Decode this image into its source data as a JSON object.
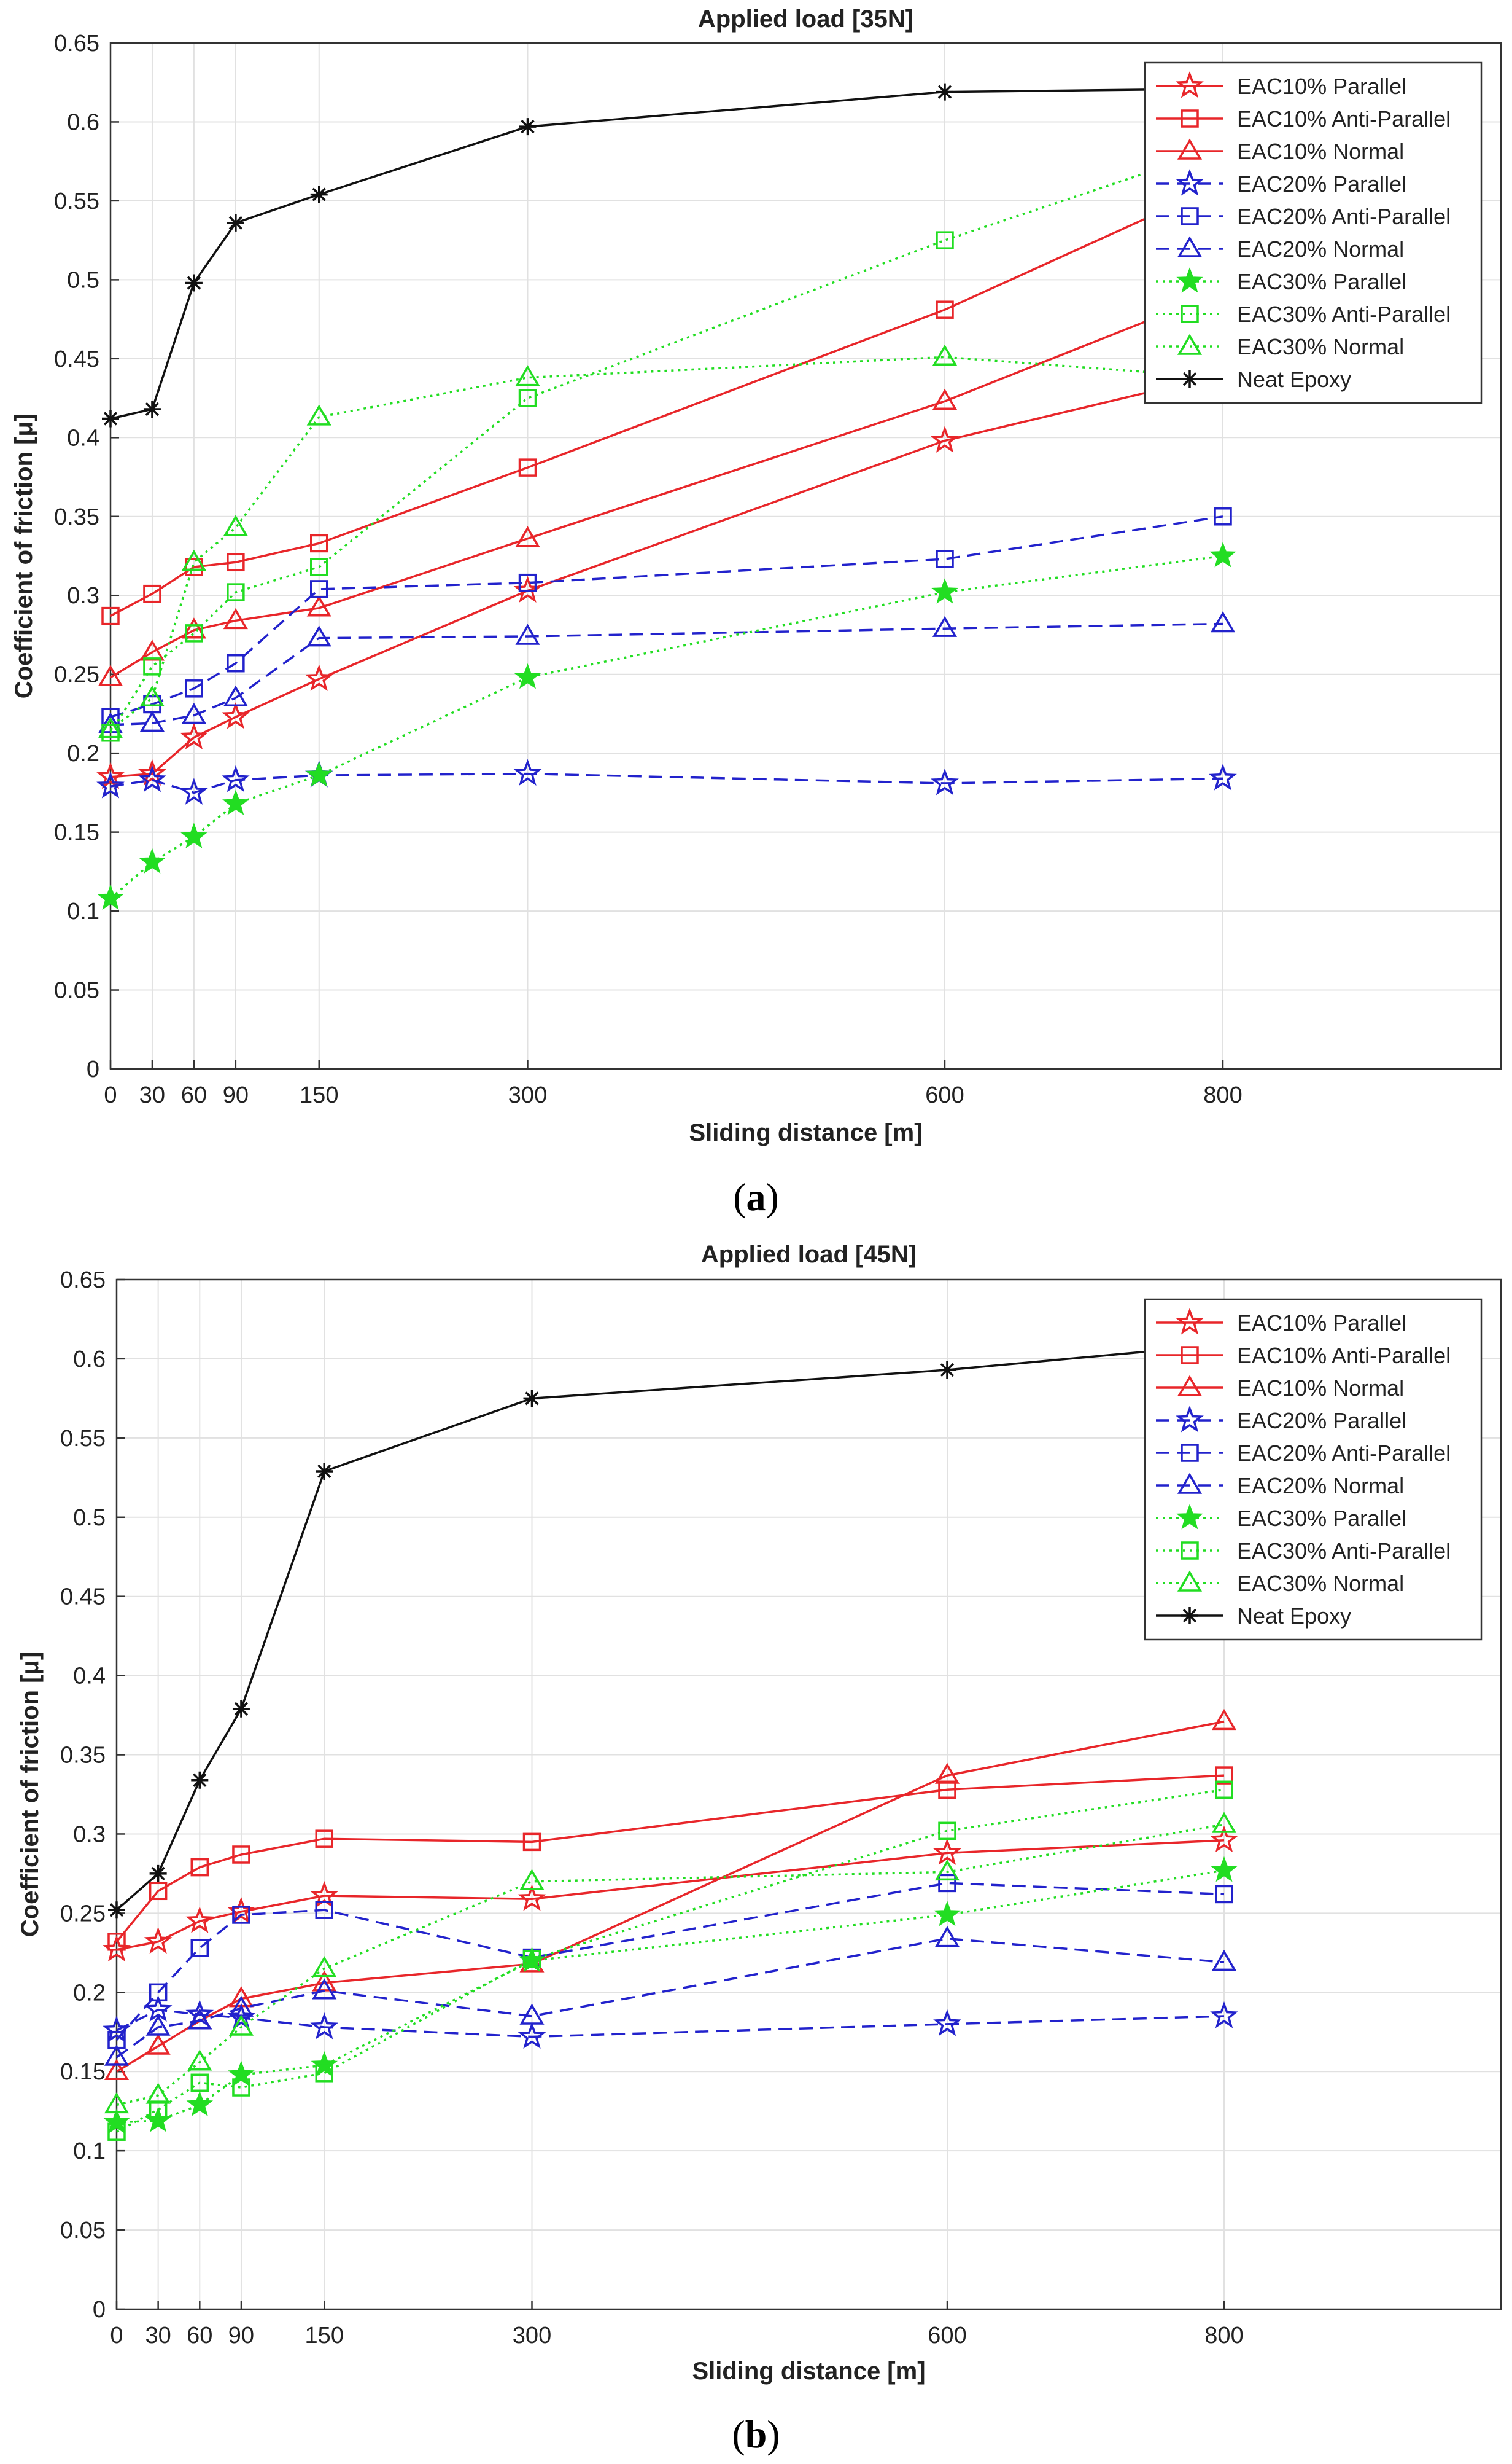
{
  "figure": {
    "captions": [
      "(a)",
      "(b)"
    ],
    "caption_letters": [
      "a",
      "b"
    ]
  },
  "series_styles": {
    "EAC10% Parallel": {
      "color": "#e8262a",
      "dash": "solid",
      "marker": "pentagram"
    },
    "EAC10% Anti-Parallel": {
      "color": "#e8262a",
      "dash": "solid",
      "marker": "square"
    },
    "EAC10% Normal": {
      "color": "#e8262a",
      "dash": "solid",
      "marker": "triangle"
    },
    "EAC20% Parallel": {
      "color": "#2222cc",
      "dash": "dashed",
      "marker": "pentagram"
    },
    "EAC20% Anti-Parallel": {
      "color": "#2222cc",
      "dash": "dashed",
      "marker": "square"
    },
    "EAC20% Normal": {
      "color": "#2222cc",
      "dash": "dashed",
      "marker": "triangle"
    },
    "EAC30% Parallel": {
      "color": "#22dd22",
      "dash": "dotted",
      "marker": "pentagram-filled"
    },
    "EAC30% Anti-Parallel": {
      "color": "#22dd22",
      "dash": "dotted",
      "marker": "square"
    },
    "EAC30% Normal": {
      "color": "#22dd22",
      "dash": "dotted",
      "marker": "triangle"
    },
    "Neat Epoxy": {
      "color": "#111111",
      "dash": "solid",
      "marker": "asterisk"
    }
  },
  "chart_data": [
    {
      "type": "line",
      "title": "Applied load [35N]",
      "xlabel": "Sliding distance [m]",
      "ylabel": "Coefficient of friction [μ]",
      "xlim": [
        0,
        1000
      ],
      "ylim": [
        0,
        0.65
      ],
      "xticks": [
        0,
        30,
        60,
        90,
        150,
        300,
        600,
        800
      ],
      "yticks": [
        0,
        0.05,
        0.1,
        0.15,
        0.2,
        0.25,
        0.3,
        0.35,
        0.4,
        0.45,
        0.5,
        0.55,
        0.6,
        0.65
      ],
      "ytick_labels": [
        "0",
        "0.05",
        "0.1",
        "0.15",
        "0.2",
        "0.25",
        "0.3",
        "0.35",
        "0.4",
        "0.45",
        "0.5",
        "0.55",
        "0.6",
        "0.65"
      ],
      "grid": true,
      "legend_position": "top-right",
      "x": [
        0,
        30,
        60,
        90,
        150,
        300,
        600,
        800
      ],
      "series": [
        {
          "name": "EAC10% Parallel",
          "values": [
            0.185,
            0.187,
            0.21,
            0.223,
            0.247,
            0.303,
            0.398,
            0.44
          ]
        },
        {
          "name": "EAC10% Anti-Parallel",
          "values": [
            0.287,
            0.301,
            0.318,
            0.321,
            0.333,
            0.381,
            0.481,
            0.561
          ]
        },
        {
          "name": "EAC10% Normal",
          "values": [
            0.248,
            0.264,
            0.278,
            0.284,
            0.292,
            0.336,
            0.423,
            0.493
          ]
        },
        {
          "name": "EAC20% Parallel",
          "values": [
            0.179,
            0.183,
            0.175,
            0.183,
            0.186,
            0.187,
            0.181,
            0.184
          ]
        },
        {
          "name": "EAC20% Anti-Parallel",
          "values": [
            0.223,
            0.231,
            0.241,
            0.257,
            0.304,
            0.308,
            0.323,
            0.35
          ]
        },
        {
          "name": "EAC20% Normal",
          "values": [
            0.218,
            0.219,
            0.224,
            0.235,
            0.273,
            0.274,
            0.279,
            0.282
          ]
        },
        {
          "name": "EAC30% Parallel",
          "values": [
            0.108,
            0.131,
            0.147,
            0.168,
            0.186,
            0.248,
            0.302,
            0.325
          ]
        },
        {
          "name": "EAC30% Anti-Parallel",
          "values": [
            0.213,
            0.255,
            0.276,
            0.302,
            0.318,
            0.425,
            0.525,
            0.584
          ]
        },
        {
          "name": "EAC30% Normal",
          "values": [
            0.215,
            0.235,
            0.321,
            0.343,
            0.413,
            0.438,
            0.451,
            0.438
          ]
        },
        {
          "name": "Neat Epoxy",
          "values": [
            0.412,
            0.418,
            0.498,
            0.536,
            0.554,
            0.597,
            0.619,
            0.621
          ]
        }
      ]
    },
    {
      "type": "line",
      "title": "Applied load [45N]",
      "xlabel": "Sliding distance [m]",
      "ylabel": "Coefficient of friction [μ]",
      "xlim": [
        0,
        1000
      ],
      "ylim": [
        0,
        0.65
      ],
      "xticks": [
        0,
        30,
        60,
        90,
        150,
        300,
        600,
        800
      ],
      "yticks": [
        0,
        0.05,
        0.1,
        0.15,
        0.2,
        0.25,
        0.3,
        0.35,
        0.4,
        0.45,
        0.5,
        0.55,
        0.6,
        0.65
      ],
      "ytick_labels": [
        "0",
        "0.05",
        "0.1",
        "0.15",
        "0.2",
        "0.25",
        "0.3",
        "0.35",
        "0.4",
        "0.45",
        "0.5",
        "0.55",
        "0.6",
        "0.65"
      ],
      "grid": true,
      "legend_position": "top-right",
      "x": [
        0,
        30,
        60,
        90,
        150,
        300,
        600,
        800
      ],
      "series": [
        {
          "name": "EAC10% Parallel",
          "values": [
            0.227,
            0.232,
            0.245,
            0.251,
            0.261,
            0.259,
            0.288,
            0.296
          ]
        },
        {
          "name": "EAC10% Anti-Parallel",
          "values": [
            0.232,
            0.264,
            0.279,
            0.287,
            0.297,
            0.295,
            0.328,
            0.337
          ]
        },
        {
          "name": "EAC10% Normal",
          "values": [
            0.15,
            0.166,
            0.182,
            0.196,
            0.206,
            0.218,
            0.337,
            0.371
          ]
        },
        {
          "name": "EAC20% Parallel",
          "values": [
            0.176,
            0.189,
            0.186,
            0.184,
            0.178,
            0.172,
            0.18,
            0.185
          ]
        },
        {
          "name": "EAC20% Anti-Parallel",
          "values": [
            0.17,
            0.2,
            0.228,
            0.249,
            0.252,
            0.222,
            0.269,
            0.262
          ]
        },
        {
          "name": "EAC20% Normal",
          "values": [
            0.159,
            0.178,
            0.182,
            0.19,
            0.201,
            0.185,
            0.234,
            0.219
          ]
        },
        {
          "name": "EAC30% Parallel",
          "values": [
            0.118,
            0.119,
            0.129,
            0.148,
            0.154,
            0.22,
            0.249,
            0.277
          ]
        },
        {
          "name": "EAC30% Anti-Parallel",
          "values": [
            0.112,
            0.126,
            0.143,
            0.14,
            0.149,
            0.221,
            0.302,
            0.328
          ]
        },
        {
          "name": "EAC30% Normal",
          "values": [
            0.129,
            0.135,
            0.156,
            0.178,
            0.215,
            0.27,
            0.276,
            0.306
          ]
        },
        {
          "name": "Neat Epoxy",
          "values": [
            0.252,
            0.275,
            0.334,
            0.379,
            0.529,
            0.575,
            0.593,
            0.609
          ]
        }
      ]
    }
  ]
}
